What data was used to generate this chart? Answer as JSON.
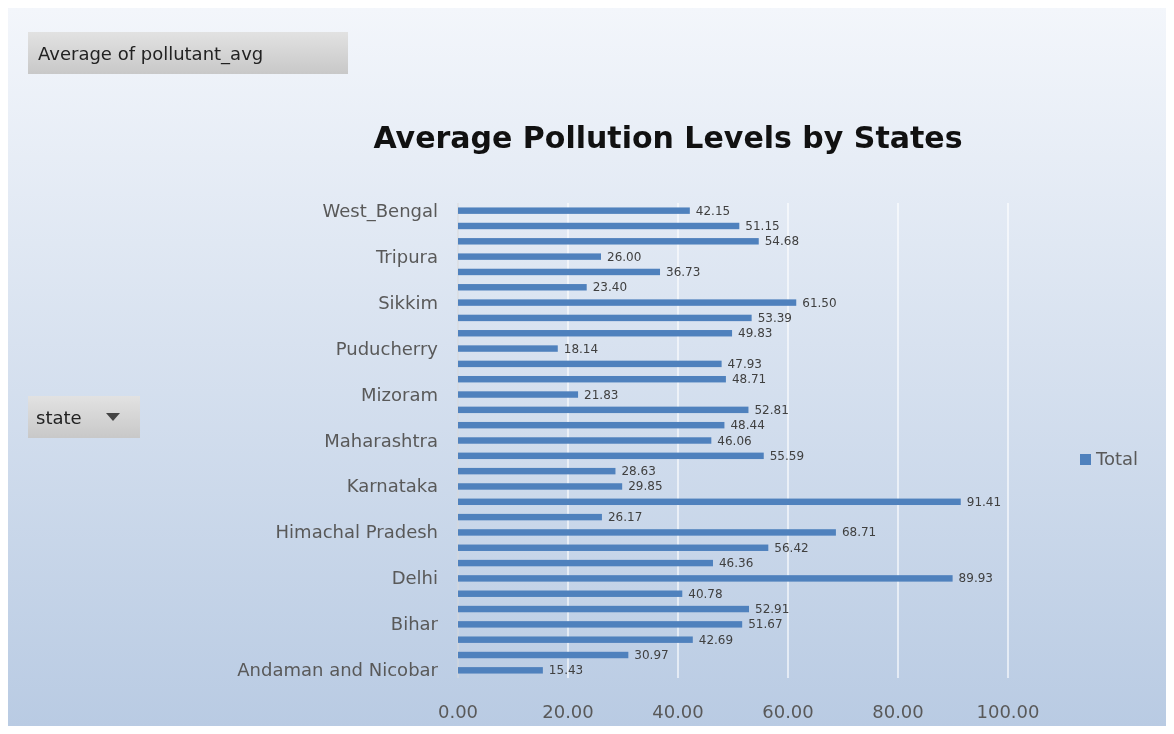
{
  "chart_data": {
    "type": "bar",
    "orientation": "horizontal",
    "title": "Average Pollution Levels by States",
    "categories": [
      "West_Bengal",
      null,
      null,
      "Tripura",
      null,
      null,
      "Sikkim",
      null,
      null,
      "Puducherry",
      null,
      null,
      "Mizoram",
      null,
      null,
      "Maharashtra",
      null,
      null,
      "Karnataka",
      null,
      null,
      "Himachal Pradesh",
      null,
      null,
      "Delhi",
      null,
      null,
      "Bihar",
      null,
      null,
      "Andaman and Nicobar"
    ],
    "series": [
      {
        "name": "Total",
        "color": "#4f81bd",
        "values": [
          42.15,
          51.15,
          54.68,
          26.0,
          36.73,
          23.4,
          61.5,
          53.39,
          49.83,
          18.14,
          47.93,
          48.71,
          21.83,
          52.81,
          48.44,
          46.06,
          55.59,
          28.63,
          29.85,
          91.41,
          26.17,
          68.71,
          56.42,
          46.36,
          89.93,
          40.78,
          52.91,
          51.67,
          42.69,
          30.97,
          15.43
        ],
        "value_labels": [
          "42.15",
          "51.15",
          "54.68",
          "26.00",
          "36.73",
          "23.40",
          "61.50",
          "53.39",
          "49.83",
          "18.14",
          "47.93",
          "48.71",
          "21.83",
          "52.81",
          "48.44",
          "46.06",
          "55.59",
          "28.63",
          "29.85",
          "91.41",
          "26.17",
          "68.71",
          "56.42",
          "46.36",
          "89.93",
          "40.78",
          "52.91",
          "51.67",
          "42.69",
          "30.97",
          "15.43"
        ]
      }
    ],
    "xlim": [
      0,
      100
    ],
    "xticks": [
      {
        "value": 0,
        "label": "0.00"
      },
      {
        "value": 20,
        "label": "20.00"
      },
      {
        "value": 40,
        "label": "40.00"
      },
      {
        "value": 60,
        "label": "60.00"
      },
      {
        "value": 80,
        "label": "80.00"
      },
      {
        "value": 100,
        "label": "100.00"
      }
    ],
    "grid": "x",
    "legend": "right",
    "annotations": [
      "Average of pollutant_avg",
      "state"
    ]
  }
}
